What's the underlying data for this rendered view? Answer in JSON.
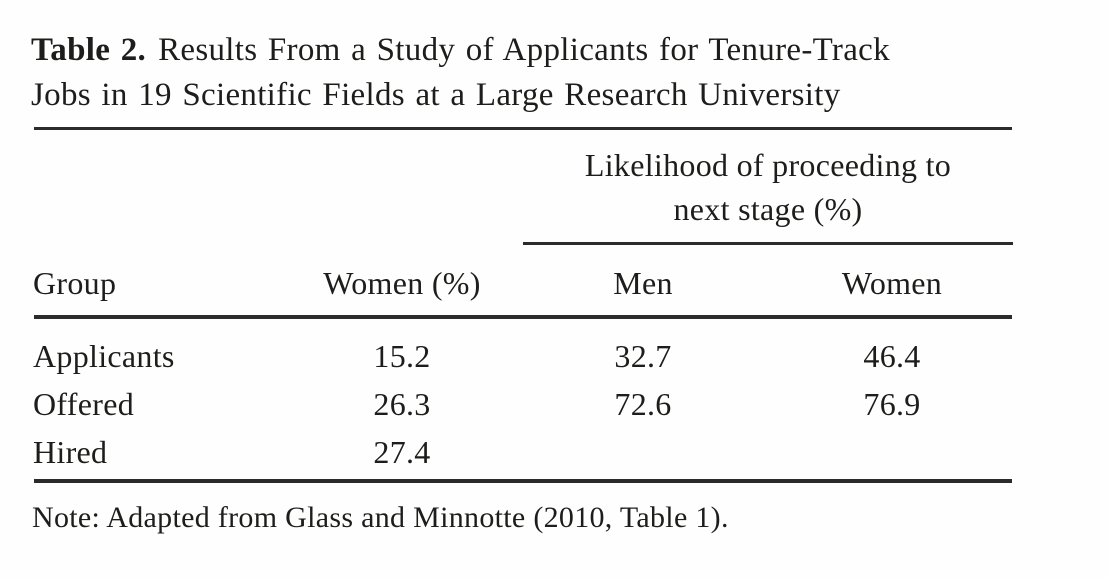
{
  "title": {
    "label": "Table 2.",
    "line1": "Results From a Study of Applicants for Tenure-Track",
    "line2": "Jobs in 19 Scientific Fields at a Large Research University"
  },
  "table": {
    "spanner": {
      "lines": [
        "Likelihood of proceeding to",
        "next stage (%)"
      ]
    },
    "columns": {
      "group": "Group",
      "women_pct": "Women (%)",
      "men": "Men",
      "women": "Women"
    },
    "rows": [
      {
        "group": "Applicants",
        "women_pct": "15.2",
        "men": "32.7",
        "women": "46.4"
      },
      {
        "group": "Offered",
        "women_pct": "26.3",
        "men": "72.6",
        "women": "76.9"
      },
      {
        "group": "Hired",
        "women_pct": "27.4",
        "men": "",
        "women": ""
      }
    ]
  },
  "note": "Note: Adapted from Glass and Minnotte (2010, Table 1).",
  "colors": {
    "text": "#1d1d1b",
    "rule": "#2b2b2b",
    "background": "#ffffff"
  }
}
